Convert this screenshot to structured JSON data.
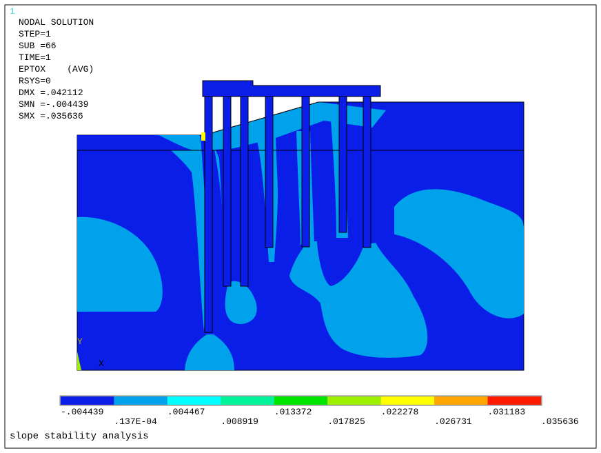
{
  "viewport_number": "1",
  "header": {
    "lines": [
      "NODAL SOLUTION",
      "STEP=1",
      "SUB =66",
      "TIME=1",
      "EPTOX    (AVG)",
      "RSYS=0",
      "DMX =.042112",
      "SMN =-.004439",
      "SMX =.035636"
    ]
  },
  "triad": {
    "y_label": "Y",
    "x_label": "X"
  },
  "legend": {
    "colors": [
      "#0b1ee8",
      "#00a2ec",
      "#00ffff",
      "#00f59a",
      "#00e600",
      "#9cf000",
      "#ffff00",
      "#ffa500",
      "#ff1a00"
    ],
    "labels": [
      "-.004439",
      ".137E-04",
      ".004467",
      ".008919",
      ".013372",
      ".017825",
      ".022278",
      ".026731",
      ".031183",
      ".035636"
    ]
  },
  "footer": {
    "title": "slope stability analysis"
  }
}
